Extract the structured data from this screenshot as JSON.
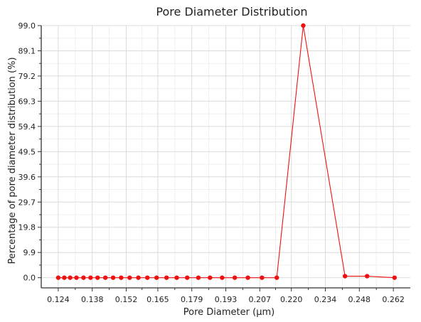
{
  "chart_data": {
    "type": "line",
    "title": "Pore Diameter Distribution",
    "xlabel": "Pore Diameter (μm)",
    "ylabel": "Percentage of pore diameter distribution (%)",
    "xlim": [
      0.117,
      0.269
    ],
    "ylim": [
      -4.0,
      99.0
    ],
    "x_ticks": [
      0.124,
      0.138,
      0.152,
      0.165,
      0.179,
      0.193,
      0.207,
      0.22,
      0.234,
      0.248,
      0.262
    ],
    "x_tick_labels": [
      "0.124",
      "0.138",
      "0.152",
      "0.165",
      "0.179",
      "0.193",
      "0.207",
      "0.220",
      "0.234",
      "0.248",
      "0.262"
    ],
    "y_ticks": [
      0.0,
      9.9,
      19.8,
      29.7,
      39.6,
      49.5,
      59.4,
      69.3,
      79.2,
      89.1,
      99.0
    ],
    "y_tick_labels": [
      "0.0",
      "9.9",
      "19.8",
      "29.7",
      "39.6",
      "49.5",
      "59.4",
      "69.3",
      "79.2",
      "89.1",
      "99.0"
    ],
    "grid": true,
    "series": [
      {
        "color": "#ee1111",
        "x": [
          0.124,
          0.1265,
          0.1289,
          0.1315,
          0.1344,
          0.1373,
          0.1402,
          0.1434,
          0.1466,
          0.1499,
          0.1534,
          0.157,
          0.1607,
          0.1645,
          0.1686,
          0.1728,
          0.1771,
          0.1817,
          0.1865,
          0.1915,
          0.1967,
          0.2021,
          0.2079,
          0.214,
          0.2249,
          0.2421,
          0.2512,
          0.2625
        ],
        "y": [
          0.0,
          0.0,
          0.0,
          0.0,
          0.0,
          0.0,
          0.0,
          0.0,
          0.0,
          0.0,
          0.0,
          0.0,
          0.0,
          0.0,
          0.0,
          0.0,
          0.0,
          0.0,
          0.0,
          0.0,
          0.0,
          0.0,
          0.0,
          0.0,
          99.0,
          0.6,
          0.6,
          0.0
        ]
      }
    ]
  }
}
